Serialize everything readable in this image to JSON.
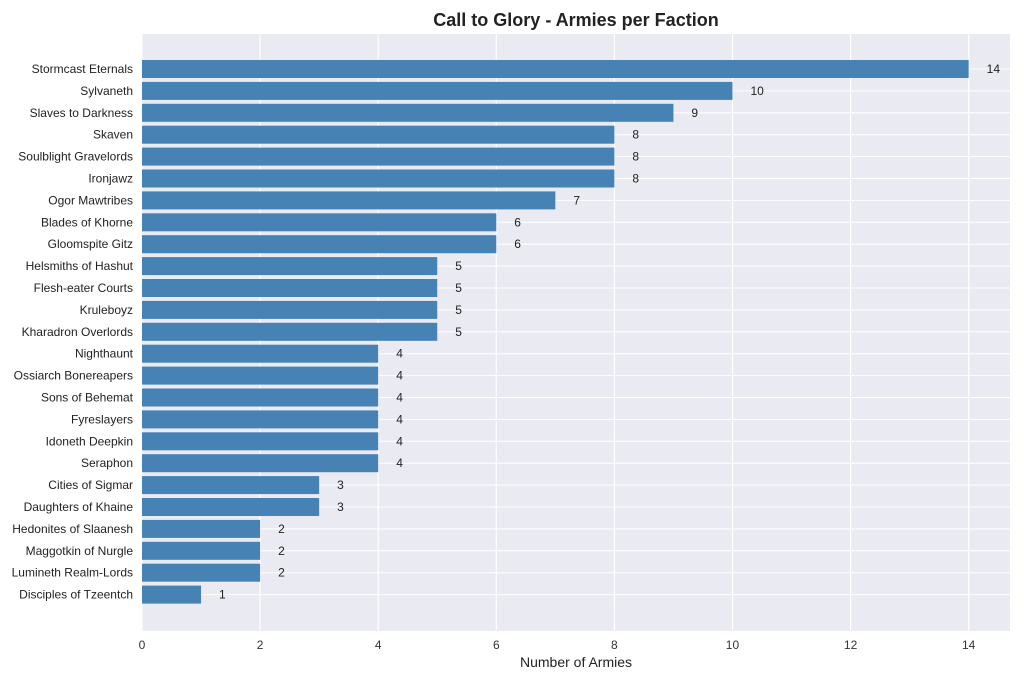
{
  "chart_data": {
    "type": "bar",
    "orientation": "horizontal",
    "title": "Call to Glory - Armies per Faction",
    "xlabel": "Number of Armies",
    "ylabel": "",
    "xlim": [
      0,
      14.7
    ],
    "xticks": [
      0,
      2,
      4,
      6,
      8,
      10,
      12,
      14
    ],
    "grid": true,
    "bar_color": "#4682b4",
    "plot_background": "#eaeaf2",
    "categories": [
      "Stormcast Eternals",
      "Sylvaneth",
      "Slaves to Darkness",
      "Skaven",
      "Soulblight Gravelords",
      "Ironjawz",
      "Ogor Mawtribes",
      "Blades of Khorne",
      "Gloomspite Gitz",
      "Helsmiths of Hashut",
      "Flesh-eater Courts",
      "Kruleboyz",
      "Kharadron Overlords",
      "Nighthaunt",
      "Ossiarch Bonereapers",
      "Sons of Behemat",
      "Fyreslayers",
      "Idoneth Deepkin",
      "Seraphon",
      "Cities of Sigmar",
      "Daughters of Khaine",
      "Hedonites of Slaanesh",
      "Maggotkin of Nurgle",
      "Lumineth Realm-Lords",
      "Disciples of Tzeentch"
    ],
    "values": [
      14,
      10,
      9,
      8,
      8,
      8,
      7,
      6,
      6,
      5,
      5,
      5,
      5,
      4,
      4,
      4,
      4,
      4,
      4,
      3,
      3,
      2,
      2,
      2,
      1
    ],
    "data_labels": true
  }
}
